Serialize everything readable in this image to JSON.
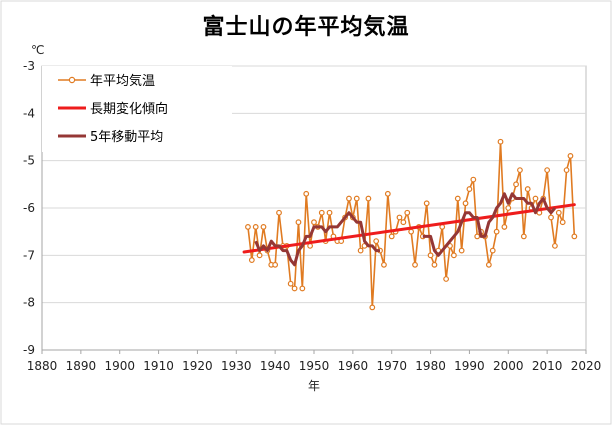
{
  "chart_data": {
    "type": "line",
    "title": "富士山の年平均気温",
    "xlabel": "年",
    "ylabel": "℃",
    "xlim": [
      1880,
      2020
    ],
    "ylim": [
      -9,
      -3
    ],
    "xticks": [
      1880,
      1890,
      1900,
      1910,
      1920,
      1930,
      1940,
      1950,
      1960,
      1970,
      1980,
      1990,
      2000,
      2010,
      2020
    ],
    "yticks": [
      -9,
      -8,
      -7,
      -6,
      -5,
      -4,
      -3
    ],
    "grid": "y",
    "legend": "top-left",
    "series": [
      {
        "name": "年平均気温",
        "color": "#e07b22",
        "marker": "circle",
        "points": [
          [
            1933,
            -6.4
          ],
          [
            1934,
            -7.1
          ],
          [
            1935,
            -6.4
          ],
          [
            1936,
            -7.0
          ],
          [
            1937,
            -6.4
          ],
          [
            1938,
            -6.9
          ],
          [
            1939,
            -7.2
          ],
          [
            1940,
            -7.2
          ],
          [
            1941,
            -6.1
          ],
          [
            1942,
            -6.8
          ],
          [
            1943,
            -6.8
          ],
          [
            1944,
            -7.6
          ],
          [
            1945,
            -7.7
          ],
          [
            1946,
            -6.3
          ],
          [
            1947,
            -7.7
          ],
          [
            1948,
            -5.7
          ],
          [
            1949,
            -6.8
          ],
          [
            1950,
            -6.3
          ],
          [
            1951,
            -6.4
          ],
          [
            1952,
            -6.1
          ],
          [
            1953,
            -6.7
          ],
          [
            1954,
            -6.1
          ],
          [
            1955,
            -6.6
          ],
          [
            1956,
            -6.7
          ],
          [
            1957,
            -6.7
          ],
          [
            1958,
            -6.2
          ],
          [
            1959,
            -5.8
          ],
          [
            1960,
            -6.2
          ],
          [
            1961,
            -5.8
          ],
          [
            1962,
            -6.9
          ],
          [
            1963,
            -6.8
          ],
          [
            1964,
            -5.8
          ],
          [
            1965,
            -8.1
          ],
          [
            1966,
            -6.7
          ],
          [
            1967,
            -6.9
          ],
          [
            1968,
            -7.2
          ],
          [
            1969,
            -5.7
          ],
          [
            1970,
            -6.6
          ],
          [
            1971,
            -6.5
          ],
          [
            1972,
            -6.2
          ],
          [
            1973,
            -6.3
          ],
          [
            1974,
            -6.1
          ],
          [
            1975,
            -6.5
          ],
          [
            1976,
            -7.2
          ],
          [
            1977,
            -6.4
          ],
          [
            1978,
            -6.6
          ],
          [
            1979,
            -5.9
          ],
          [
            1980,
            -7.0
          ],
          [
            1981,
            -7.2
          ],
          [
            1982,
            -6.9
          ],
          [
            1983,
            -6.4
          ],
          [
            1984,
            -7.5
          ],
          [
            1985,
            -6.8
          ],
          [
            1986,
            -7.0
          ],
          [
            1987,
            -5.8
          ],
          [
            1988,
            -6.9
          ],
          [
            1989,
            -5.9
          ],
          [
            1990,
            -5.6
          ],
          [
            1991,
            -5.4
          ],
          [
            1992,
            -6.6
          ],
          [
            1993,
            -6.5
          ],
          [
            1994,
            -6.6
          ],
          [
            1995,
            -7.2
          ],
          [
            1996,
            -6.9
          ],
          [
            1997,
            -6.5
          ],
          [
            1998,
            -4.6
          ],
          [
            1999,
            -6.4
          ],
          [
            2000,
            -6.0
          ],
          [
            2001,
            -5.8
          ],
          [
            2002,
            -5.5
          ],
          [
            2003,
            -5.2
          ],
          [
            2004,
            -6.6
          ],
          [
            2005,
            -5.6
          ],
          [
            2006,
            -6.0
          ],
          [
            2007,
            -5.8
          ],
          [
            2008,
            -6.1
          ],
          [
            2009,
            -5.8
          ],
          [
            2010,
            -5.2
          ],
          [
            2011,
            -6.2
          ],
          [
            2012,
            -6.8
          ],
          [
            2013,
            -6.1
          ],
          [
            2014,
            -6.3
          ],
          [
            2015,
            -5.2
          ],
          [
            2016,
            -4.9
          ],
          [
            2017,
            -6.6
          ]
        ]
      },
      {
        "name": "長期変化傾向",
        "color": "#ee1c1c",
        "points": [
          [
            1932,
            -6.93
          ],
          [
            2017,
            -5.93
          ]
        ]
      },
      {
        "name": "5年移動平均",
        "color": "#953735",
        "points": [
          [
            1935,
            -6.7
          ],
          [
            1936,
            -6.9
          ],
          [
            1937,
            -6.8
          ],
          [
            1938,
            -6.9
          ],
          [
            1939,
            -6.7
          ],
          [
            1940,
            -6.8
          ],
          [
            1941,
            -6.8
          ],
          [
            1942,
            -6.9
          ],
          [
            1943,
            -6.9
          ],
          [
            1944,
            -7.1
          ],
          [
            1945,
            -7.2
          ],
          [
            1946,
            -6.9
          ],
          [
            1947,
            -6.8
          ],
          [
            1948,
            -6.6
          ],
          [
            1949,
            -6.6
          ],
          [
            1950,
            -6.4
          ],
          [
            1951,
            -6.4
          ],
          [
            1952,
            -6.4
          ],
          [
            1953,
            -6.5
          ],
          [
            1954,
            -6.4
          ],
          [
            1955,
            -6.4
          ],
          [
            1956,
            -6.4
          ],
          [
            1957,
            -6.3
          ],
          [
            1958,
            -6.2
          ],
          [
            1959,
            -6.1
          ],
          [
            1960,
            -6.2
          ],
          [
            1961,
            -6.3
          ],
          [
            1962,
            -6.3
          ],
          [
            1963,
            -6.7
          ],
          [
            1964,
            -6.8
          ],
          [
            1965,
            -6.8
          ],
          [
            1966,
            -6.9
          ],
          [
            1967,
            -6.9
          ],
          [
            1978,
            -6.6
          ],
          [
            1979,
            -6.6
          ],
          [
            1980,
            -6.6
          ],
          [
            1981,
            -6.9
          ],
          [
            1982,
            -7.0
          ],
          [
            1983,
            -6.9
          ],
          [
            1984,
            -6.8
          ],
          [
            1985,
            -6.7
          ],
          [
            1986,
            -6.6
          ],
          [
            1987,
            -6.5
          ],
          [
            1988,
            -6.3
          ],
          [
            1989,
            -6.1
          ],
          [
            1990,
            -6.1
          ],
          [
            1991,
            -6.2
          ],
          [
            1992,
            -6.2
          ],
          [
            1993,
            -6.6
          ],
          [
            1994,
            -6.6
          ],
          [
            1995,
            -6.3
          ],
          [
            1996,
            -6.2
          ],
          [
            1997,
            -6.0
          ],
          [
            1998,
            -5.9
          ],
          [
            1999,
            -5.7
          ],
          [
            2000,
            -5.9
          ],
          [
            2001,
            -5.7
          ],
          [
            2002,
            -5.8
          ],
          [
            2003,
            -5.8
          ],
          [
            2004,
            -5.8
          ],
          [
            2005,
            -5.9
          ],
          [
            2006,
            -5.9
          ],
          [
            2007,
            -6.1
          ],
          [
            2008,
            -5.9
          ],
          [
            2009,
            -5.8
          ],
          [
            2010,
            -6.0
          ],
          [
            2011,
            -6.1
          ],
          [
            2012,
            -6.0
          ]
        ]
      }
    ]
  }
}
